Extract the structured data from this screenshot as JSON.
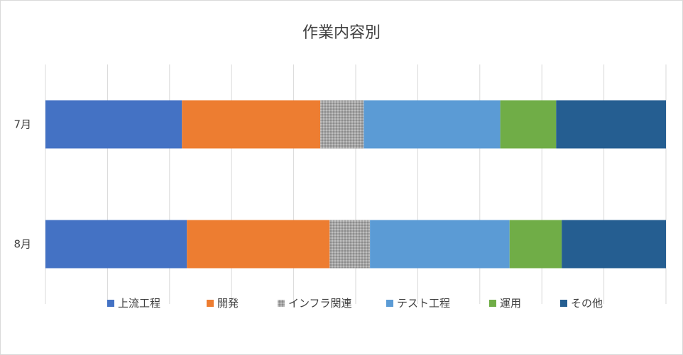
{
  "chart_data": {
    "type": "bar",
    "orientation": "horizontal",
    "stacking": "percent",
    "title": "作業内容別",
    "xlabel": "",
    "ylabel": "",
    "categories": [
      "7月",
      "8月"
    ],
    "xlim": [
      0,
      100
    ],
    "grid": true,
    "legend": "bottom",
    "series": [
      {
        "name": "上流工程",
        "color": "#4472C4",
        "values": [
          22,
          22.8
        ]
      },
      {
        "name": "開発",
        "color": "#ED7D31",
        "values": [
          22.3,
          23
        ]
      },
      {
        "name": "インフラ関連",
        "color": "#A5A5A5",
        "pattern": true,
        "values": [
          7,
          6.5
        ]
      },
      {
        "name": "テスト工程",
        "color": "#5B9BD5",
        "values": [
          22,
          22.5
        ]
      },
      {
        "name": "運用",
        "color": "#70AD47",
        "values": [
          9,
          8.4
        ]
      },
      {
        "name": "その他",
        "color": "#255E91",
        "values": [
          17.7,
          16.8
        ]
      }
    ]
  }
}
